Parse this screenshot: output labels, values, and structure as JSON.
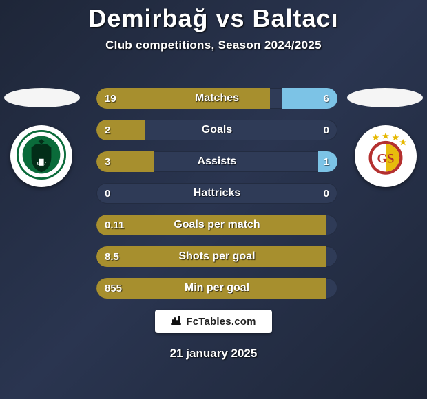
{
  "header": {
    "title": "Demirbağ vs Baltacı",
    "subtitle": "Club competitions, Season 2024/2025"
  },
  "site_logo": {
    "text": "FcTables.com"
  },
  "date": "21 january 2025",
  "colors": {
    "fill_olive": "#a78f2e",
    "fill_sky": "#7cc3e6",
    "track": "#2f3b57"
  },
  "player_left": {
    "name": "Demirbağ",
    "club": "Konyaspor"
  },
  "player_right": {
    "name": "Baltacı",
    "club": "Galatasaray"
  },
  "rows": [
    {
      "label": "Matches",
      "left_val": "19",
      "right_val": "6",
      "left_fill_pct": 72,
      "right_fill_pct": 23,
      "left_color": "#a78f2e",
      "right_color": "#7cc3e6"
    },
    {
      "label": "Goals",
      "left_val": "2",
      "right_val": "0",
      "left_fill_pct": 20,
      "right_fill_pct": 0,
      "left_color": "#a78f2e",
      "right_color": "#7cc3e6"
    },
    {
      "label": "Assists",
      "left_val": "3",
      "right_val": "1",
      "left_fill_pct": 24,
      "right_fill_pct": 8,
      "left_color": "#a78f2e",
      "right_color": "#7cc3e6"
    },
    {
      "label": "Hattricks",
      "left_val": "0",
      "right_val": "0",
      "left_fill_pct": 0,
      "right_fill_pct": 0,
      "left_color": "#a78f2e",
      "right_color": "#7cc3e6"
    },
    {
      "label": "Goals per match",
      "left_val": "0.11",
      "right_val": "",
      "left_fill_pct": 95,
      "right_fill_pct": 0,
      "left_color": "#a78f2e",
      "right_color": "#7cc3e6"
    },
    {
      "label": "Shots per goal",
      "left_val": "8.5",
      "right_val": "",
      "left_fill_pct": 95,
      "right_fill_pct": 0,
      "left_color": "#a78f2e",
      "right_color": "#7cc3e6"
    },
    {
      "label": "Min per goal",
      "left_val": "855",
      "right_val": "",
      "left_fill_pct": 95,
      "right_fill_pct": 0,
      "left_color": "#a78f2e",
      "right_color": "#7cc3e6"
    }
  ]
}
